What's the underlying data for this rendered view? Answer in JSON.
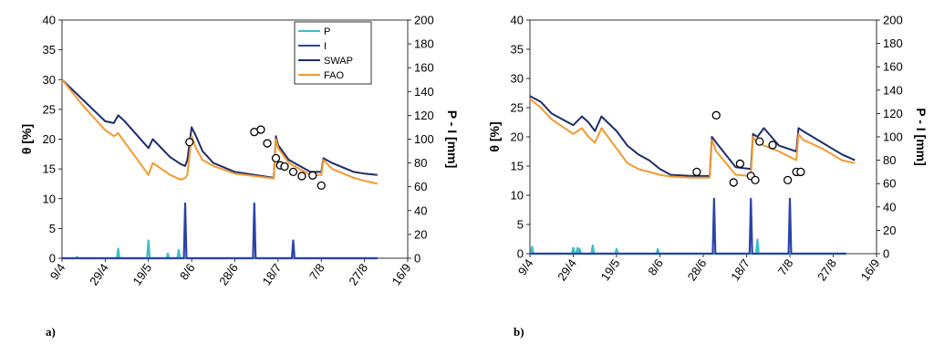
{
  "chart_data": [
    {
      "type": "line",
      "panel_label": "a)",
      "ylabel_left": "θ [%]",
      "ylabel_right": "P - I [mm]",
      "ylim_left": [
        0,
        40
      ],
      "ylim_right": [
        0,
        200
      ],
      "yticks_left": [
        "0",
        "5",
        "10",
        "15",
        "20",
        "25",
        "30",
        "35",
        "40"
      ],
      "yticks_right": [
        "0",
        "20",
        "40",
        "60",
        "80",
        "100",
        "120",
        "140",
        "160",
        "180",
        "200"
      ],
      "xticks": [
        "9/4",
        "29/4",
        "19/5",
        "8/6",
        "28/6",
        "18/7",
        "7/8",
        "27/8",
        "16/9"
      ],
      "xlim_days": [
        0,
        160
      ],
      "legend": {
        "placement": "top-right",
        "entries": [
          "P",
          "I",
          "SWAP",
          "FAO"
        ]
      },
      "series": [
        {
          "name": "SWAP",
          "axis": "left",
          "color": "#1f2d6b",
          "x": [
            0,
            10,
            20,
            24,
            26,
            29,
            40,
            42,
            50,
            55,
            57,
            58,
            60,
            62,
            65,
            70,
            80,
            98,
            99,
            100,
            105,
            115,
            120,
            121,
            125,
            135,
            140,
            146
          ],
          "y": [
            30,
            26.5,
            23,
            22.7,
            24,
            23,
            18.5,
            20,
            17,
            15.8,
            15.5,
            16.5,
            22,
            20.5,
            18,
            16,
            14.5,
            13.5,
            20.5,
            19,
            16.5,
            14.5,
            14.5,
            16.8,
            16,
            14.5,
            14.2,
            14
          ]
        },
        {
          "name": "FAO",
          "axis": "left",
          "color": "#f39a2f",
          "x": [
            0,
            10,
            20,
            24,
            26,
            29,
            40,
            42,
            50,
            55,
            57,
            58,
            60,
            62,
            65,
            70,
            80,
            98,
            99,
            100,
            105,
            115,
            120,
            121,
            125,
            135,
            140,
            146
          ],
          "y": [
            30,
            25.5,
            21.5,
            20.5,
            21,
            19.5,
            14,
            16,
            14,
            13.2,
            13.5,
            14,
            20.5,
            18.5,
            16.5,
            15.5,
            14.2,
            13.4,
            20,
            18.5,
            16,
            14,
            14,
            16.5,
            15,
            13.5,
            13,
            12.5
          ]
        },
        {
          "name": "P",
          "axis": "right",
          "color": "#3cbfc4",
          "peaks": [
            [
              7,
              1
            ],
            [
              26,
              8
            ],
            [
              40,
              15
            ],
            [
              49,
              4
            ],
            [
              54,
              7
            ]
          ]
        },
        {
          "name": "I",
          "axis": "right",
          "color": "#2c43a8",
          "peaks": [
            [
              57,
              46
            ],
            [
              89,
              46
            ],
            [
              107,
              15
            ]
          ]
        },
        {
          "name": "observed",
          "axis": "left",
          "marker": "circle",
          "x": [
            59,
            89,
            92,
            95,
            99,
            101,
            103,
            107,
            111,
            116,
            120
          ],
          "y": [
            19.5,
            21.2,
            21.6,
            19.3,
            16.8,
            15.6,
            15.4,
            14.5,
            13.8,
            13.9,
            12.2
          ]
        }
      ]
    },
    {
      "type": "line",
      "panel_label": "b)",
      "ylabel_left": "θ [%]",
      "ylabel_right": "P - I [mm]",
      "ylim_left": [
        0,
        40
      ],
      "ylim_right": [
        0,
        200
      ],
      "yticks_left": [
        "0",
        "5",
        "10",
        "15",
        "20",
        "25",
        "30",
        "35",
        "40"
      ],
      "yticks_right": [
        "0",
        "20",
        "40",
        "60",
        "80",
        "100",
        "120",
        "140",
        "160",
        "180",
        "200"
      ],
      "xticks": [
        "9/4",
        "29/4",
        "19/5",
        "8/6",
        "28/6",
        "18/7",
        "7/8",
        "27/8",
        "16/9"
      ],
      "xlim_days": [
        0,
        160
      ],
      "series": [
        {
          "name": "SWAP",
          "axis": "left",
          "color": "#1f2d6b",
          "x": [
            0,
            5,
            10,
            20,
            24,
            27,
            30,
            33,
            40,
            45,
            50,
            55,
            60,
            65,
            75,
            83,
            84,
            86,
            95,
            102,
            103,
            105,
            108,
            115,
            123,
            124,
            126,
            135,
            144,
            150
          ],
          "y": [
            27,
            26,
            24,
            22,
            23.5,
            22.5,
            21,
            23.5,
            21,
            18.5,
            17,
            16,
            14.5,
            13.5,
            13.3,
            13.3,
            20,
            19,
            14.8,
            14.5,
            20.5,
            20,
            21.5,
            18.5,
            17.5,
            21.5,
            21,
            19,
            17,
            16
          ]
        },
        {
          "name": "FAO",
          "axis": "left",
          "color": "#f39a2f",
          "x": [
            0,
            5,
            10,
            20,
            24,
            27,
            30,
            33,
            40,
            45,
            50,
            55,
            60,
            65,
            75,
            83,
            84,
            86,
            95,
            102,
            103,
            105,
            108,
            115,
            123,
            124,
            126,
            135,
            144,
            150
          ],
          "y": [
            26.5,
            25,
            23,
            20.5,
            21.5,
            20,
            19,
            21.5,
            18,
            15.5,
            14.5,
            14,
            13.5,
            13.2,
            13,
            13,
            19.5,
            17.5,
            13.5,
            13.3,
            20,
            19,
            18.5,
            17.5,
            16,
            20.5,
            19.5,
            18,
            16,
            15.5
          ]
        },
        {
          "name": "P",
          "axis": "right",
          "color": "#3cbfc4",
          "peaks": [
            [
              1,
              6
            ],
            [
              20,
              5
            ],
            [
              22,
              5
            ],
            [
              23,
              4
            ],
            [
              29,
              7
            ],
            [
              40,
              4
            ],
            [
              59,
              4
            ],
            [
              105,
              12
            ]
          ]
        },
        {
          "name": "I",
          "axis": "right",
          "color": "#2c43a8",
          "peaks": [
            [
              85,
              47
            ],
            [
              102,
              47
            ],
            [
              120,
              47
            ]
          ]
        },
        {
          "name": "observed",
          "axis": "left",
          "marker": "circle",
          "x": [
            77,
            86,
            94,
            97,
            102,
            104,
            106,
            112,
            119,
            123,
            125
          ],
          "y": [
            14,
            23.7,
            12.2,
            15.4,
            13.3,
            12.6,
            19.2,
            18.6,
            12.6,
            14,
            14
          ]
        }
      ]
    }
  ]
}
